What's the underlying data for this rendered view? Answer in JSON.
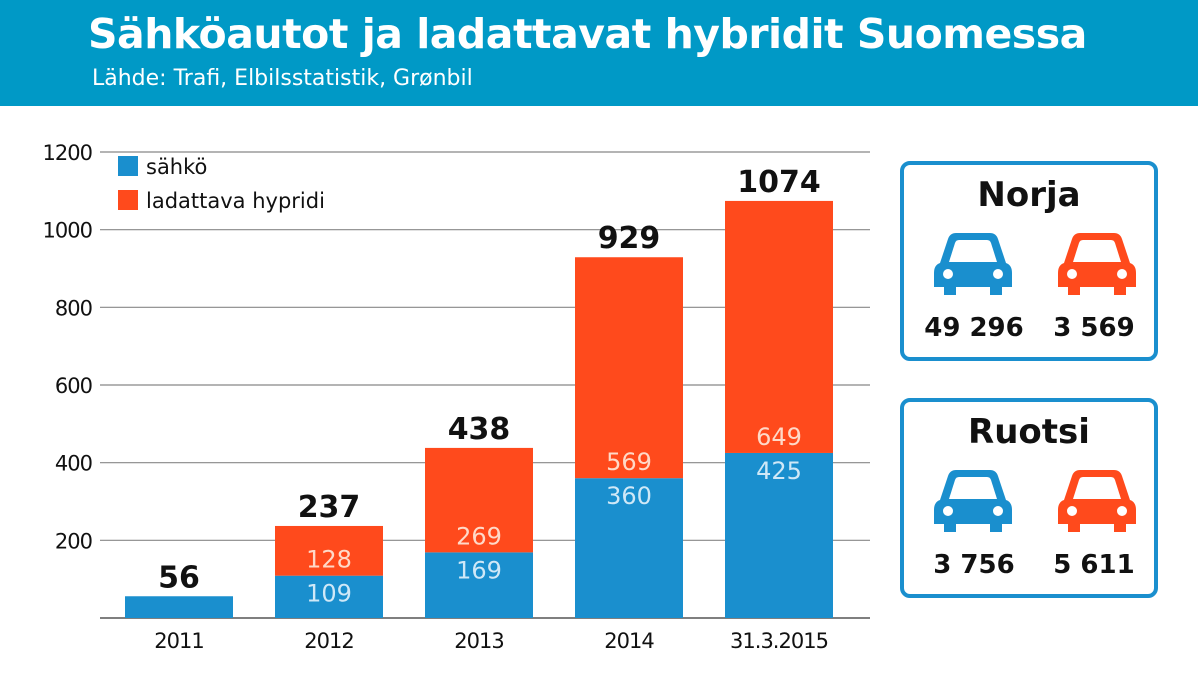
{
  "header": {
    "title": "Sähköautot ja ladattavat hybridit Suomessa",
    "source": "Lähde: Trafi, Elbilsstatistik, Grønbil"
  },
  "colors": {
    "header_bg": "#0099c6",
    "electric": "#1a8fce",
    "hybrid": "#ff4a1c",
    "card_border": "#1a8fce"
  },
  "chart_data": {
    "type": "bar",
    "stacked": true,
    "categories": [
      "2011",
      "2012",
      "2013",
      "2014",
      "31.3.2015"
    ],
    "series": [
      {
        "name": "sähkö",
        "values": [
          56,
          109,
          169,
          360,
          425
        ]
      },
      {
        "name": "ladattava hypridi",
        "values": [
          0,
          128,
          269,
          569,
          649
        ]
      }
    ],
    "totals": [
      56,
      237,
      438,
      929,
      1074
    ],
    "segment_labels": {
      "sähkö": [
        "",
        "109",
        "169",
        "360",
        "425"
      ],
      "ladattava hypridi": [
        "",
        "128",
        "269",
        "569",
        "649"
      ]
    },
    "ylim": [
      0,
      1200
    ],
    "yticks": [
      200,
      400,
      600,
      800,
      1000,
      1200
    ],
    "grid": true,
    "legend": "top-left",
    "title": "",
    "xlabel": "",
    "ylabel": ""
  },
  "cards": [
    {
      "country": "Norja",
      "electric": "49 296",
      "hybrid": "3 569"
    },
    {
      "country": "Ruotsi",
      "electric": "3 756",
      "hybrid": "5 611"
    }
  ],
  "icons": {
    "electric_car": "car-icon",
    "hybrid_car": "car-icon"
  }
}
